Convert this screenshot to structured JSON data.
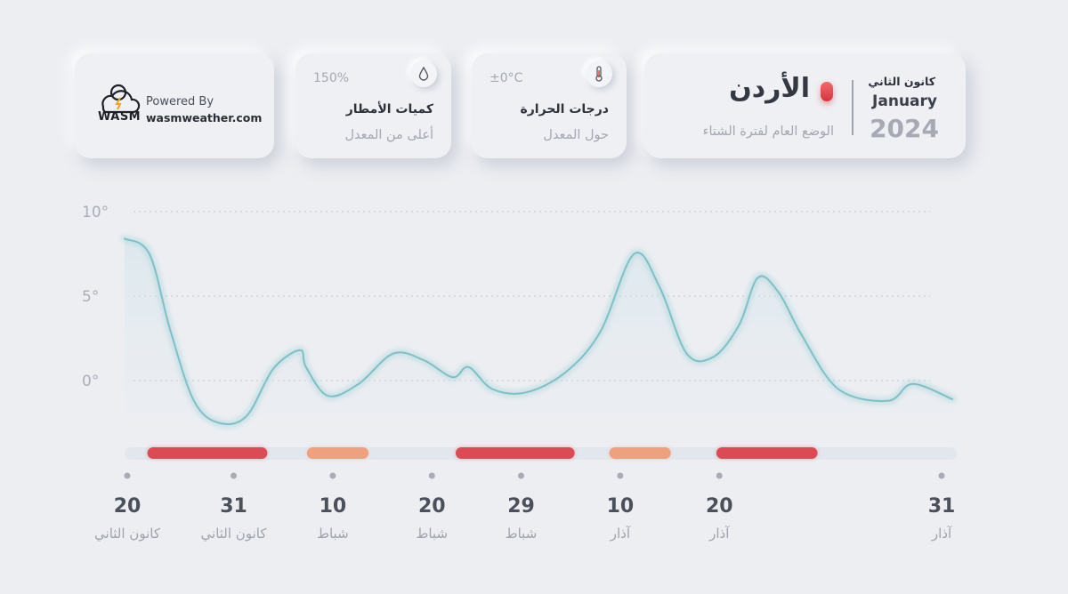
{
  "brand": {
    "logo_text": "WASM",
    "powered_by": "Powered By",
    "site": "wasmweather.com"
  },
  "rain": {
    "value": "150%",
    "title": "كميات الأمطار",
    "status": "أعلى من المعدل",
    "icon": "drop-icon"
  },
  "temperature": {
    "value": "±0°C",
    "title": "درجات الحرارة",
    "status": "حول المعدل",
    "icon": "thermometer-icon"
  },
  "header": {
    "month_ar": "كانون الثاني",
    "month_en": "January",
    "year": "2024",
    "country": "الأردن",
    "subtitle": "الوضع العام لفترة الشتاء"
  },
  "colors": {
    "line": "#7fc0c7",
    "alert_red": "#dc4a55",
    "alert_orange": "#efa07f",
    "bar_track": "#e2e7ee"
  },
  "chart_data": {
    "type": "line",
    "ylim": [
      -4,
      10
    ],
    "yticks": [
      {
        "value": 10,
        "label": "10°"
      },
      {
        "value": 5,
        "label": "5°"
      },
      {
        "value": 0,
        "label": "0°"
      }
    ],
    "grid": true,
    "series": [
      {
        "values": [
          [
            0,
            8.4
          ],
          [
            2.5,
            7.5
          ],
          [
            4.6,
            3
          ],
          [
            7,
            -1.2
          ],
          [
            9.5,
            -2.5
          ],
          [
            12.3,
            -2.1
          ],
          [
            15,
            0.7
          ],
          [
            17.7,
            1.8
          ],
          [
            18.3,
            0.8
          ],
          [
            20.5,
            -0.9
          ],
          [
            23.6,
            -0.2
          ],
          [
            27.1,
            1.6
          ],
          [
            30.2,
            1.2
          ],
          [
            33.1,
            0.2
          ],
          [
            34.7,
            0.8
          ],
          [
            37.1,
            -0.5
          ],
          [
            40.5,
            -0.7
          ],
          [
            44.5,
            0.5
          ],
          [
            48,
            2.9
          ],
          [
            51.4,
            7.5
          ],
          [
            54,
            5.5
          ],
          [
            56.7,
            1.6
          ],
          [
            59.4,
            1.4
          ],
          [
            62,
            3.3
          ],
          [
            63.9,
            6.1
          ],
          [
            66,
            5.2
          ],
          [
            68.3,
            2.7
          ],
          [
            72,
            -0.5
          ],
          [
            77,
            -1.2
          ],
          [
            79.5,
            -0.2
          ],
          [
            83.5,
            -1.1
          ]
        ]
      }
    ],
    "alert_periods": [
      {
        "start": 2.3,
        "end": 14.4,
        "level": "high",
        "color": "#dc4a55"
      },
      {
        "start": 18.4,
        "end": 24.6,
        "level": "above",
        "color": "#efa07f"
      },
      {
        "start": 33.4,
        "end": 45.4,
        "level": "high",
        "color": "#dc4a55"
      },
      {
        "start": 48.9,
        "end": 55.1,
        "level": "above",
        "color": "#efa07f"
      },
      {
        "start": 59.7,
        "end": 69.9,
        "level": "high",
        "color": "#dc4a55"
      }
    ],
    "x_ticks": [
      {
        "x": 0,
        "day": "20",
        "month": "كانون الثاني"
      },
      {
        "x": 11,
        "day": "31",
        "month": "كانون الثاني"
      },
      {
        "x": 21,
        "day": "10",
        "month": "شباط"
      },
      {
        "x": 31,
        "day": "20",
        "month": "شباط"
      },
      {
        "x": 40,
        "day": "29",
        "month": "شباط"
      },
      {
        "x": 50,
        "day": "10",
        "month": "آذار"
      },
      {
        "x": 60,
        "day": "20",
        "month": "آذار"
      },
      {
        "x": 71,
        "day": "31",
        "month": "آذار"
      }
    ]
  }
}
